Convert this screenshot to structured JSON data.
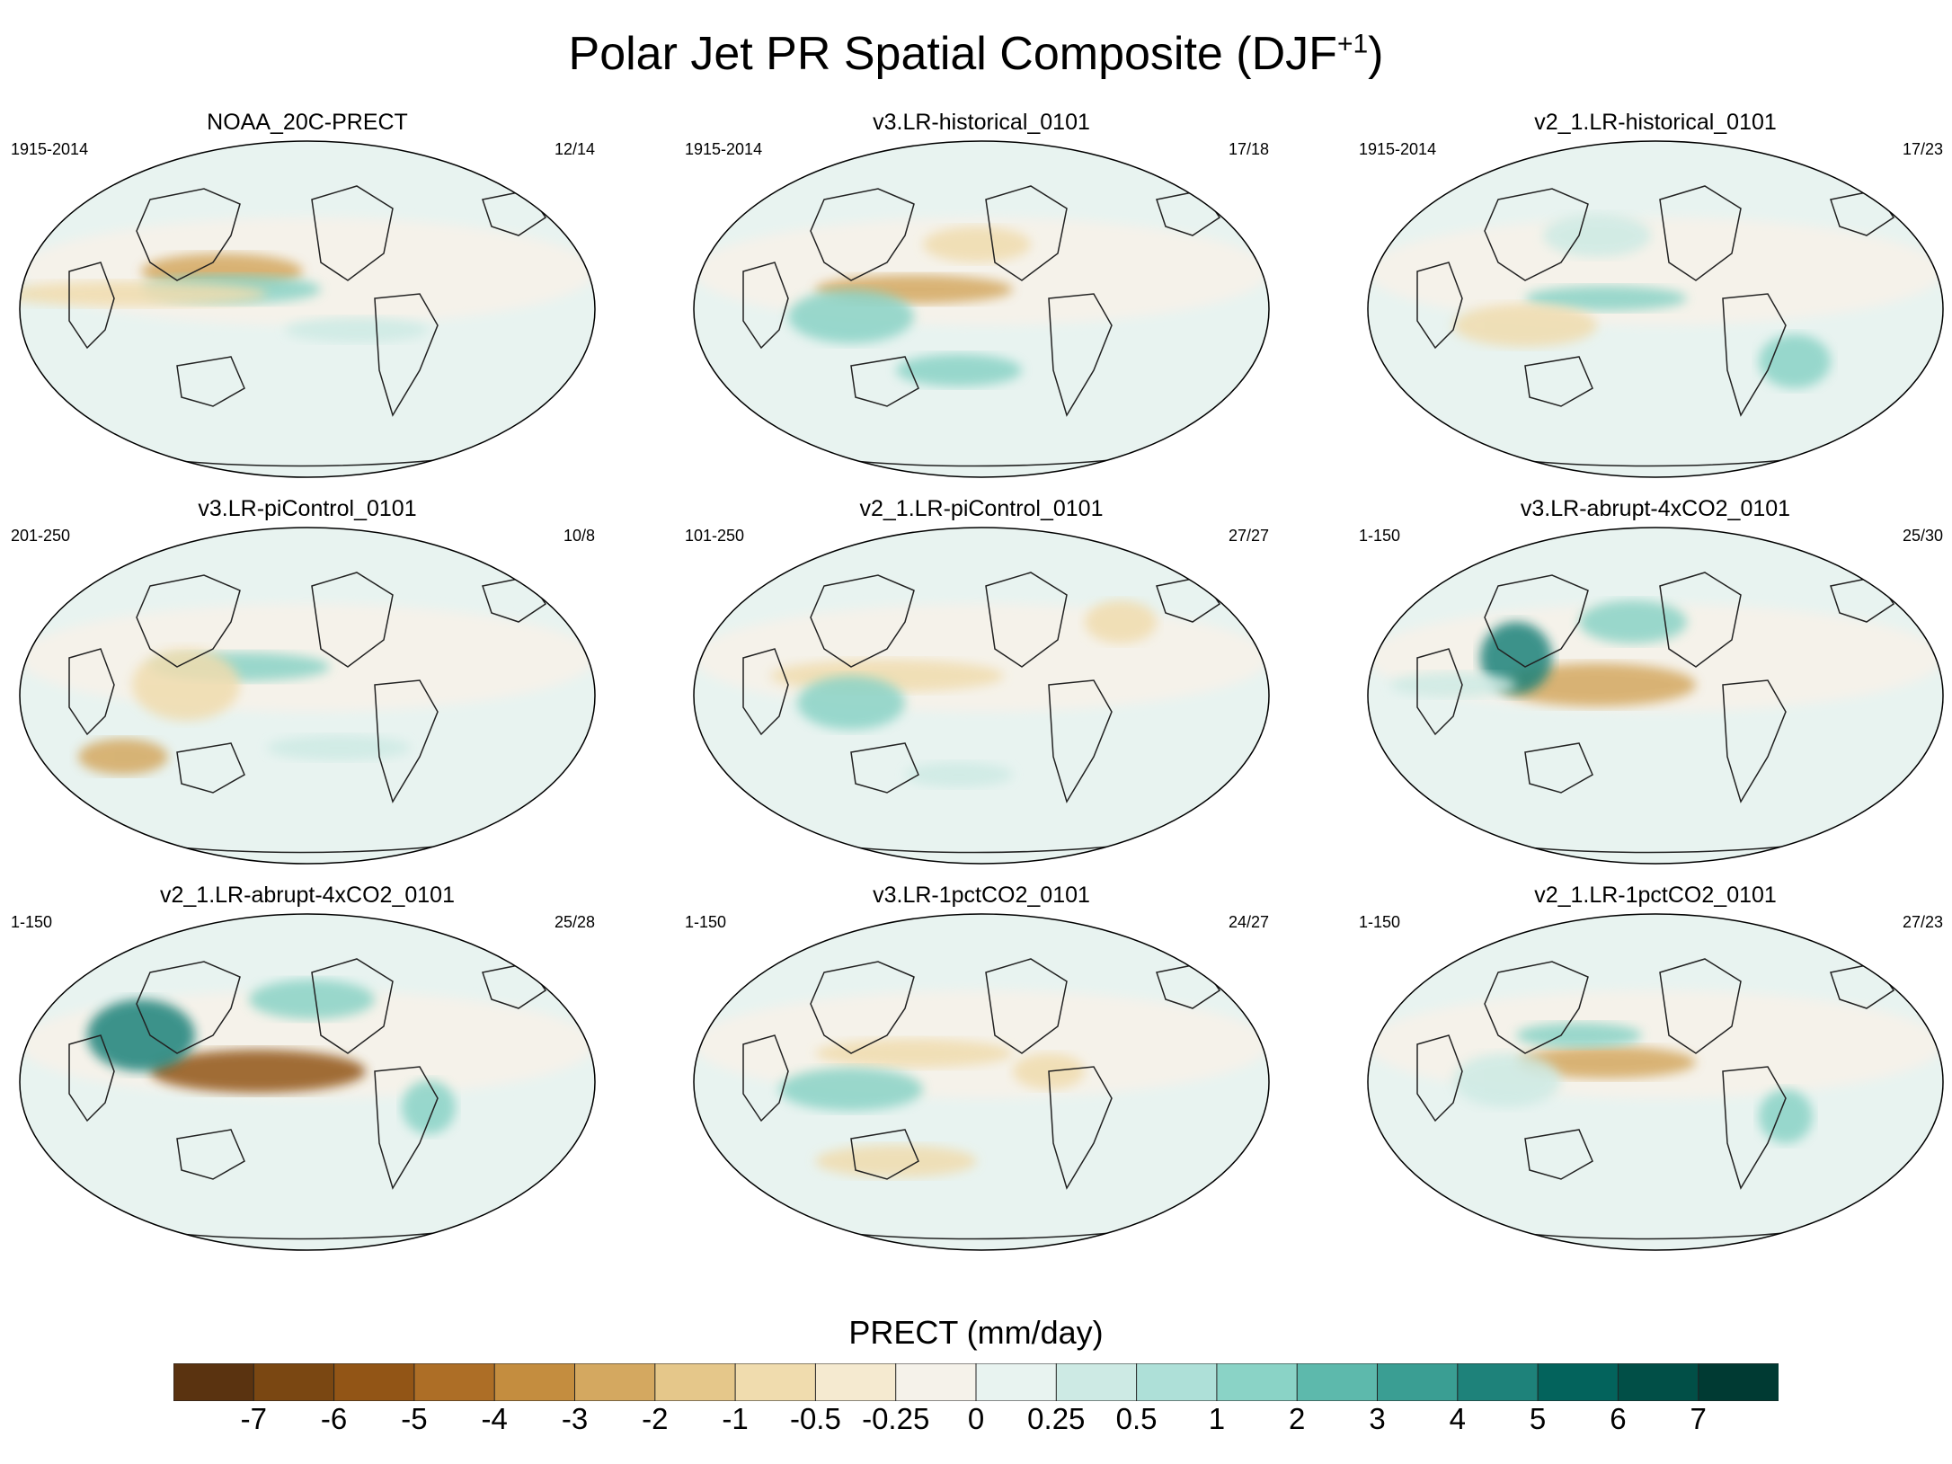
{
  "title": {
    "main": "Polar Jet PR Spatial Composite (DJF",
    "sup": "+1",
    "end": ")"
  },
  "panels": [
    {
      "title": "NOAA_20C-PRECT",
      "period": "1915-2014",
      "count": "12/14"
    },
    {
      "title": "v3.LR-historical_0101",
      "period": "1915-2014",
      "count": "17/18"
    },
    {
      "title": "v2_1.LR-historical_0101",
      "period": "1915-2014",
      "count": "17/23"
    },
    {
      "title": "v3.LR-piControl_0101",
      "period": "201-250",
      "count": "10/8"
    },
    {
      "title": "v2_1.LR-piControl_0101",
      "period": "101-250",
      "count": "27/27"
    },
    {
      "title": "v3.LR-abrupt-4xCO2_0101",
      "period": "1-150",
      "count": "25/30"
    },
    {
      "title": "v2_1.LR-abrupt-4xCO2_0101",
      "period": "1-150",
      "count": "25/28"
    },
    {
      "title": "v3.LR-1pctCO2_0101",
      "period": "1-150",
      "count": "24/27"
    },
    {
      "title": "v2_1.LR-1pctCO2_0101",
      "period": "1-150",
      "count": "27/23"
    }
  ],
  "colorbar": {
    "title": "PRECT (mm/day)",
    "labels": [
      "-7",
      "-6",
      "-5",
      "-4",
      "-3",
      "-2",
      "-1",
      "-0.5",
      "-0.25",
      "0",
      "0.25",
      "0.5",
      "1",
      "2",
      "3",
      "4",
      "5",
      "6",
      "7"
    ],
    "colors": [
      "#5a3310",
      "#7a4712",
      "#925516",
      "#ad6e26",
      "#c48d3f",
      "#d4a860",
      "#e5c78a",
      "#f0dcae",
      "#f5ead0",
      "#f5f2ea",
      "#e8f3f0",
      "#cdeae4",
      "#aee0d8",
      "#8ad3c6",
      "#5db9ac",
      "#3a9e93",
      "#1e827a",
      "#03635c",
      "#014f47",
      "#003a33"
    ]
  }
}
